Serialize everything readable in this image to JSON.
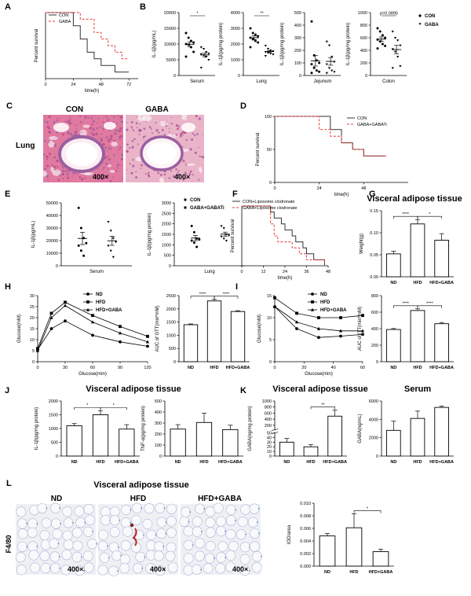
{
  "chart_data": [
    {
      "id": "A",
      "type": "line",
      "panel_letter": "A",
      "ylabel": "Percent survival",
      "xlabel": "time(h)",
      "xlim": [
        0,
        80
      ],
      "ylim": [
        0,
        100
      ],
      "xticks": [
        0,
        24,
        48,
        72
      ],
      "yticks": [],
      "legend": "top-left",
      "series": [
        {
          "name": "CON",
          "color": "#333333",
          "dash": "",
          "x": [
            0,
            18,
            24,
            30,
            36,
            42,
            48,
            54,
            60,
            66,
            72
          ],
          "y": [
            100,
            100,
            80,
            60,
            40,
            30,
            20,
            20,
            10,
            10,
            10
          ]
        },
        {
          "name": "GABA",
          "color": "#e53935",
          "dash": "3,2",
          "x": [
            0,
            24,
            30,
            42,
            48,
            54,
            60,
            66,
            72
          ],
          "y": [
            100,
            100,
            90,
            70,
            60,
            50,
            40,
            30,
            30
          ]
        }
      ]
    },
    {
      "id": "B1",
      "type": "scatter",
      "panel_letter": "B",
      "ylabel": "IL-1β(pg/mL)",
      "xlabel": "Serum",
      "ylim": [
        0,
        20000
      ],
      "yticks": [
        0,
        5000,
        10000,
        15000,
        20000
      ],
      "sig": "*",
      "groups": [
        {
          "name": "CON",
          "values": [
            13500,
            12000,
            11000,
            10500,
            10000,
            9800,
            9000,
            7500,
            6000
          ]
        },
        {
          "name": "GABA",
          "values": [
            9000,
            8500,
            7500,
            7000,
            6800,
            6500,
            6000,
            5000,
            2500
          ]
        }
      ]
    },
    {
      "id": "B2",
      "type": "scatter",
      "ylabel": "IL-1β(pg/mg protein)",
      "xlabel": "Lung",
      "ylim": [
        0,
        4000
      ],
      "yticks": [
        0,
        1000,
        2000,
        3000,
        4000
      ],
      "sig": "**",
      "groups": [
        {
          "name": "CON",
          "values": [
            3000,
            2700,
            2600,
            2500,
            2400,
            2300,
            2200,
            2100,
            1800
          ]
        },
        {
          "name": "GABA",
          "values": [
            1900,
            1700,
            1600,
            1550,
            1500,
            1450,
            1400,
            1350,
            1250
          ]
        }
      ]
    },
    {
      "id": "B3",
      "type": "scatter",
      "ylabel": "IL-1β(pg/mg protein)",
      "xlabel": "Jejunum",
      "ylim": [
        0,
        500
      ],
      "yticks": [
        0,
        100,
        200,
        300,
        400,
        500
      ],
      "sig": "",
      "groups": [
        {
          "name": "CON",
          "values": [
            430,
            160,
            120,
            100,
            90,
            60,
            40,
            30,
            20
          ]
        },
        {
          "name": "GABA",
          "values": [
            270,
            240,
            150,
            110,
            90,
            60,
            40,
            30,
            20
          ]
        }
      ]
    },
    {
      "id": "B4",
      "type": "scatter",
      "ylabel": "IL-1β(pg/mg protein)",
      "xlabel": "Colon",
      "ylim": [
        0,
        1000
      ],
      "yticks": [
        0,
        200,
        400,
        600,
        800,
        1000
      ],
      "sig": "p=0.0895",
      "legend": "right",
      "groups": [
        {
          "name": "CON",
          "values": [
            750,
            700,
            640,
            600,
            570,
            540,
            500,
            470,
            430
          ]
        },
        {
          "name": "GABA",
          "values": [
            700,
            600,
            560,
            480,
            420,
            380,
            300,
            150,
            120
          ]
        }
      ]
    },
    {
      "id": "D",
      "type": "line",
      "panel_letter": "D",
      "ylabel": "Percent survival",
      "xlabel": "time(h)",
      "xlim": [
        0,
        72
      ],
      "ylim": [
        0,
        100
      ],
      "xticks": [
        0,
        24,
        48
      ],
      "yticks": [
        0,
        50,
        100
      ],
      "legend": "top-right",
      "series": [
        {
          "name": "CON",
          "color": "#333333",
          "dash": "",
          "x": [
            0,
            24,
            30,
            36,
            42,
            48,
            60
          ],
          "y": [
            100,
            100,
            80,
            60,
            50,
            40,
            40
          ]
        },
        {
          "name": "GABA+GABATi",
          "color": "#e53935",
          "dash": "3,2",
          "x": [
            0,
            18,
            24,
            30,
            36,
            42,
            48,
            60
          ],
          "y": [
            100,
            100,
            80,
            70,
            60,
            50,
            40,
            40
          ]
        }
      ]
    },
    {
      "id": "E1",
      "type": "scatter",
      "panel_letter": "E",
      "ylabel": "IL-1β(pg/mL)",
      "xlabel": "Serum",
      "ylim": [
        0,
        50000
      ],
      "yticks": [
        0,
        10000,
        20000,
        30000,
        40000,
        50000
      ],
      "sig": "",
      "groups": [
        {
          "name": "CON",
          "values": [
            46000,
            30000,
            22000,
            18000,
            16000,
            12000,
            8000
          ]
        },
        {
          "name": "GABA+GABATi",
          "values": [
            35000,
            28000,
            22000,
            19000,
            16000,
            12000,
            7000
          ]
        }
      ]
    },
    {
      "id": "E2",
      "type": "scatter",
      "ylabel": "IL-1β(pg/mg protein)",
      "xlabel": "Lung",
      "ylim": [
        0,
        3000
      ],
      "yticks": [
        0,
        500,
        1000,
        1500,
        2000,
        2500,
        3000
      ],
      "sig": "",
      "legend": "top",
      "groups": [
        {
          "name": "CON",
          "values": [
            1900,
            1600,
            1300,
            1250,
            1200,
            1100,
            900
          ]
        },
        {
          "name": "GABA+GABATi",
          "values": [
            1900,
            1800,
            1500,
            1450,
            1400,
            1300,
            1200
          ]
        }
      ]
    },
    {
      "id": "F",
      "type": "line",
      "panel_letter": "F",
      "ylabel": "Percent survival",
      "xlabel": "time(h)",
      "xlim": [
        0,
        48
      ],
      "ylim": [
        0,
        100
      ],
      "xticks": [
        0,
        12,
        24,
        36,
        48
      ],
      "yticks": [],
      "legend": "top",
      "series": [
        {
          "name": "CON+Liposome clodronate",
          "color": "#333333",
          "dash": "",
          "x": [
            0,
            14,
            16,
            18,
            22,
            24,
            28,
            30,
            34,
            36,
            40,
            44,
            46
          ],
          "y": [
            100,
            100,
            90,
            80,
            70,
            60,
            50,
            40,
            30,
            20,
            10,
            10,
            0
          ]
        },
        {
          "name": "GABA+Liposome clodronate",
          "color": "#e53935",
          "dash": "3,2",
          "x": [
            0,
            14,
            16,
            18,
            20,
            24,
            28,
            32,
            36,
            42,
            46
          ],
          "y": [
            100,
            100,
            70,
            50,
            40,
            40,
            30,
            20,
            10,
            10,
            0
          ]
        }
      ]
    },
    {
      "id": "G",
      "type": "bar",
      "panel_letter": "G",
      "title": "Visceral adipose tissue",
      "ylabel": "Weight(g)",
      "categories": [
        "ND",
        "HFD",
        "HFD+GABA"
      ],
      "values": [
        0.052,
        0.12,
        0.083
      ],
      "errors": [
        0.006,
        0.01,
        0.015
      ],
      "ylim": [
        0,
        0.15
      ],
      "yticks": [
        0,
        0.05,
        0.1,
        0.15
      ],
      "ytick_labels": [
        "0.00",
        "0.05",
        "0.10",
        "0.15"
      ],
      "sig": [
        {
          "from": 0,
          "to": 1,
          "label": "****"
        },
        {
          "from": 1,
          "to": 2,
          "label": "*"
        }
      ]
    },
    {
      "id": "H1",
      "type": "line",
      "panel_letter": "H",
      "ylabel": "Glucose(mM)",
      "xlabel": "Glucose(min)",
      "xlim": [
        0,
        120
      ],
      "ylim": [
        0,
        30
      ],
      "xticks": [
        0,
        30,
        60,
        90,
        120
      ],
      "yticks": [
        0,
        5,
        10,
        15,
        20,
        25,
        30
      ],
      "legend": "top-right",
      "series": [
        {
          "name": "ND",
          "marker": "circle",
          "x": [
            0,
            15,
            30,
            60,
            90,
            120
          ],
          "y": [
            5.5,
            15,
            18.5,
            12,
            9,
            7
          ]
        },
        {
          "name": "HFD",
          "marker": "square",
          "x": [
            0,
            15,
            30,
            60,
            90,
            120
          ],
          "y": [
            6,
            22,
            27,
            21,
            16,
            11.5
          ]
        },
        {
          "name": "HFD+GABA",
          "marker": "triangle",
          "x": [
            0,
            15,
            30,
            60,
            90,
            120
          ],
          "y": [
            5,
            20,
            25.5,
            18,
            13,
            9
          ]
        }
      ]
    },
    {
      "id": "H2",
      "type": "bar",
      "ylabel": "AUC of GTT(min*mM)",
      "categories": [
        "ND",
        "HFD",
        "HFD+GABA"
      ],
      "values": [
        1400,
        2300,
        1900
      ],
      "errors": [
        30,
        60,
        30
      ],
      "ylim": [
        0,
        2500
      ],
      "yticks": [
        0,
        500,
        1000,
        1500,
        2000,
        2500
      ],
      "sig": [
        {
          "from": 0,
          "to": 1,
          "label": "****"
        },
        {
          "from": 1,
          "to": 2,
          "label": "****"
        }
      ]
    },
    {
      "id": "I1",
      "type": "line",
      "panel_letter": "I",
      "ylabel": "Glucose(mM)",
      "xlabel": "Glucose(min)",
      "xlim": [
        0,
        60
      ],
      "ylim": [
        0,
        15
      ],
      "xticks": [
        0,
        20,
        40,
        60
      ],
      "yticks": [
        0,
        5,
        10,
        15
      ],
      "legend": "top-right",
      "series": [
        {
          "name": "ND",
          "marker": "circle",
          "x": [
            0,
            15,
            30,
            45,
            60
          ],
          "y": [
            12.5,
            7.5,
            5.5,
            5.8,
            6.2
          ]
        },
        {
          "name": "HFD",
          "marker": "square",
          "x": [
            0,
            15,
            30,
            45,
            60
          ],
          "y": [
            14.5,
            11,
            10,
            10,
            10.5
          ]
        },
        {
          "name": "HFD+GABA",
          "marker": "triangle",
          "x": [
            0,
            15,
            30,
            45,
            60
          ],
          "y": [
            12.5,
            9,
            7.5,
            7,
            7
          ]
        }
      ]
    },
    {
      "id": "I2",
      "type": "bar",
      "ylabel": "AUC of ITT(min*mM)",
      "categories": [
        "ND",
        "HFD",
        "HFD+GABA"
      ],
      "values": [
        390,
        620,
        460
      ],
      "errors": [
        12,
        20,
        15
      ],
      "ylim": [
        0,
        800
      ],
      "yticks": [
        0,
        200,
        400,
        600,
        800
      ],
      "sig": [
        {
          "from": 0,
          "to": 1,
          "label": "****"
        },
        {
          "from": 1,
          "to": 2,
          "label": "****"
        }
      ]
    },
    {
      "id": "J1",
      "type": "bar",
      "panel_letter": "J",
      "ylabel": "IL-1β(pg/mg protein)",
      "categories": [
        "ND",
        "HFD",
        "HFD+GABA"
      ],
      "values": [
        1100,
        1500,
        980
      ],
      "errors": [
        80,
        150,
        160
      ],
      "ylim": [
        0,
        2000
      ],
      "yticks": [
        0,
        500,
        1000,
        1500,
        2000
      ],
      "sig": [
        {
          "from": 0,
          "to": 1,
          "label": "*"
        },
        {
          "from": 1,
          "to": 2,
          "label": "*"
        }
      ]
    },
    {
      "id": "J2",
      "type": "bar",
      "ylabel": "TNF-α(pg/mg protein)",
      "categories": [
        "ND",
        "HFD",
        "HFD+GABA"
      ],
      "values": [
        245,
        305,
        240
      ],
      "errors": [
        40,
        85,
        40
      ],
      "ylim": [
        0,
        500
      ],
      "yticks": [
        0,
        100,
        200,
        300,
        400,
        500
      ],
      "sig": []
    },
    {
      "id": "K1",
      "type": "bar",
      "panel_letter": "K",
      "title": "Visceral adipose tissue",
      "ylabel": "GABA(ng/mg protein)",
      "categories": [
        "ND",
        "HFD",
        "HFD+GABA"
      ],
      "values": [
        30,
        20,
        500
      ],
      "errors": [
        8,
        5,
        200
      ],
      "ylim": [
        0,
        1000
      ],
      "yticks": [
        0,
        10,
        20,
        30,
        40,
        50,
        200,
        400,
        600,
        800,
        1000
      ],
      "sig": [
        {
          "from": 1,
          "to": 2,
          "label": "**"
        }
      ]
    },
    {
      "id": "K2",
      "type": "bar",
      "title": "Serum",
      "ylabel": "GABA(ng/mL)",
      "categories": [
        "ND",
        "HFD",
        "HFD+GABA"
      ],
      "values": [
        2800,
        4100,
        5300
      ],
      "errors": [
        1000,
        800,
        150
      ],
      "ylim": [
        0,
        6000
      ],
      "yticks": [
        0,
        2000,
        4000,
        6000
      ],
      "sig": []
    },
    {
      "id": "L",
      "type": "bar",
      "ylabel": "IOD/area",
      "categories": [
        "ND",
        "HFD",
        "HFD+GABA"
      ],
      "values": [
        0.0048,
        0.0061,
        0.0023
      ],
      "errors": [
        0.0004,
        0.0022,
        0.0004
      ],
      "ylim": [
        0,
        0.01
      ],
      "yticks": [
        0,
        0.002,
        0.004,
        0.006,
        0.008,
        0.01
      ],
      "ytick_labels": [
        "0.000",
        "0.002",
        "0.004",
        "0.006",
        "0.008",
        "0.010"
      ],
      "sig": [
        {
          "from": 1,
          "to": 2,
          "label": "*"
        }
      ]
    }
  ],
  "panels": {
    "B_legend": [
      "CON",
      "GABA"
    ],
    "C": {
      "letter": "C",
      "row_label": "Lung",
      "columns": [
        "CON",
        "GABA"
      ],
      "scale": "400×"
    },
    "J": {
      "title": "Visceral adipose tissue"
    },
    "L": {
      "letter": "L",
      "title": "Visceral adipose tissue",
      "row_label": "F4/80",
      "columns": [
        "ND",
        "HFD",
        "HFD+GABA"
      ],
      "scale": "400×"
    }
  },
  "colors": {
    "con": "#333333",
    "gaba": "#e53935",
    "tissue_pink": "#e07aa0",
    "tissue_purple": "#9a5fa0",
    "ihc_bg": "#eef0f4",
    "ihc_blue": "#6f86c2"
  }
}
